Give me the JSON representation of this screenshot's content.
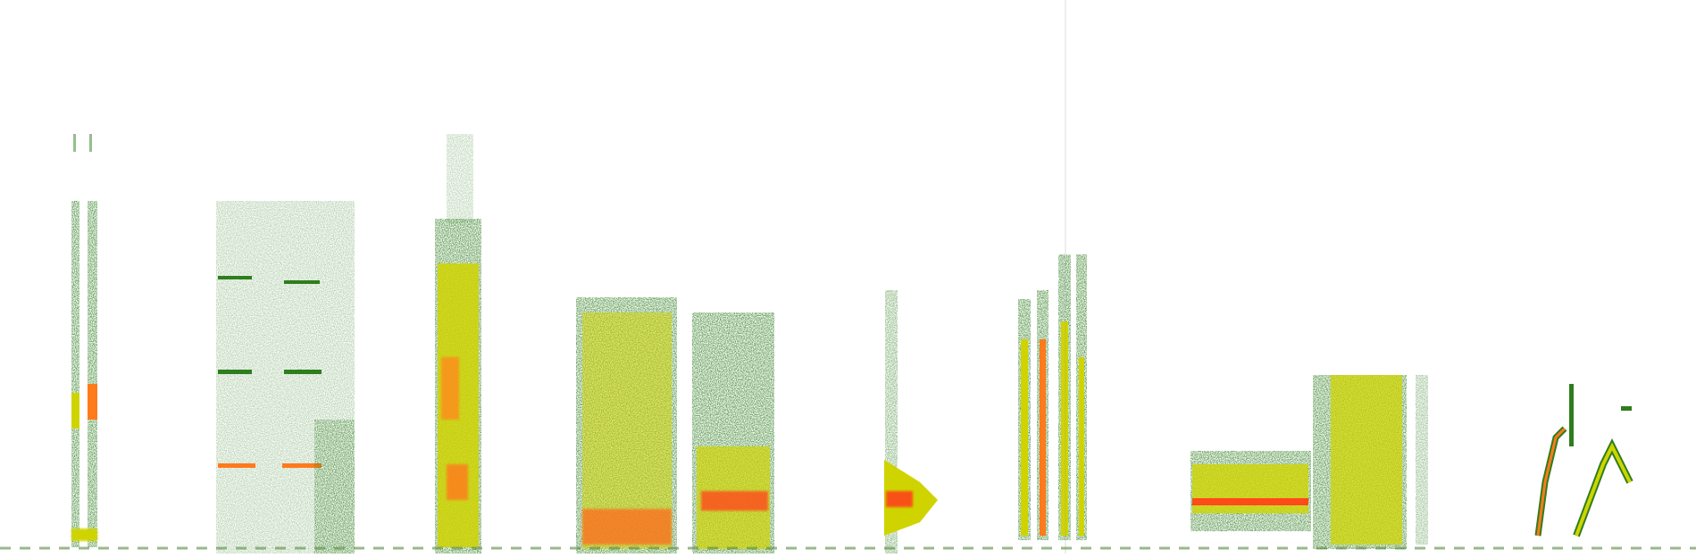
{
  "colors": {
    "background": "#ffffff",
    "low": "#2e7d1f",
    "mid": "#cfd400",
    "high": "#ff3a1a"
  },
  "segments": [
    {
      "id": "seg-1",
      "kind": "dual-vertical-harmonic-stack"
    },
    {
      "id": "seg-2",
      "kind": "sparse-horizontal-tones-with-noise"
    },
    {
      "id": "seg-3",
      "kind": "tall-broadband-column"
    },
    {
      "id": "seg-4",
      "kind": "broad-noise-block-pair"
    },
    {
      "id": "seg-5",
      "kind": "narrow-low-frequency-burst"
    },
    {
      "id": "seg-6",
      "kind": "four-vertical-pulses"
    },
    {
      "id": "seg-7",
      "kind": "horizontal-banded-tone-with-grid"
    },
    {
      "id": "seg-8",
      "kind": "frequency-sweep-chirps"
    }
  ]
}
